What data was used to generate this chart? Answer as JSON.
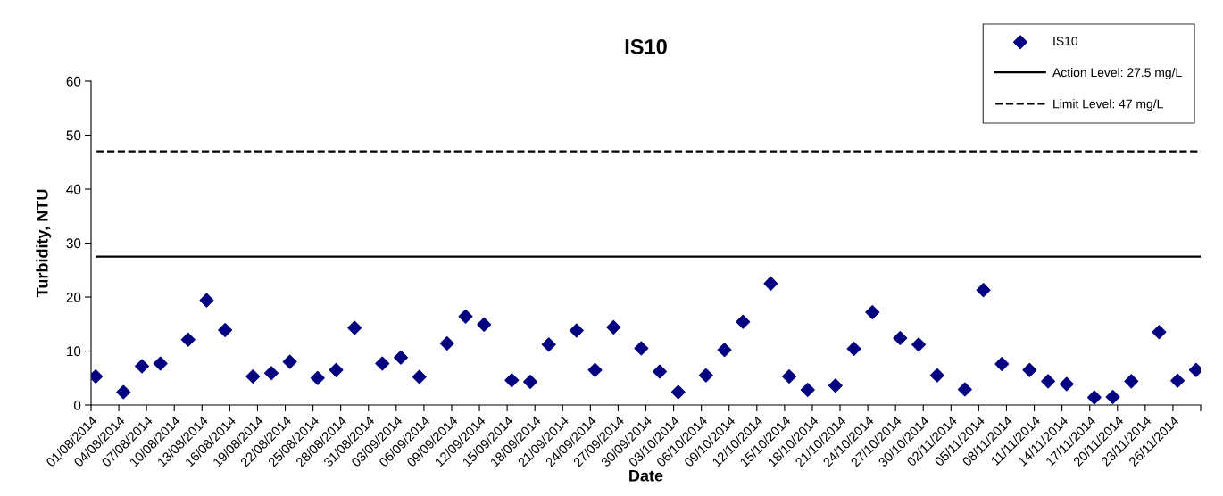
{
  "chart_data": {
    "type": "scatter",
    "title": "IS10",
    "xlabel": "Date",
    "ylabel": "Turbidity, NTU",
    "x": [
      "2014-08-01T12:00",
      "2014-08-04T12:00",
      "2014-08-06T12:00",
      "2014-08-08T12:00",
      "2014-08-11T12:00",
      "2014-08-13T12:00",
      "2014-08-15T12:00",
      "2014-08-18T12:00",
      "2014-08-20T12:00",
      "2014-08-22T12:00",
      "2014-08-25T12:00",
      "2014-08-27T12:00",
      "2014-08-29T12:00",
      "2014-09-01T12:00",
      "2014-09-03T12:00",
      "2014-09-05T12:00",
      "2014-09-08T12:00",
      "2014-09-10T12:00",
      "2014-09-12T12:00",
      "2014-09-15T12:00",
      "2014-09-17T12:00",
      "2014-09-19T12:00",
      "2014-09-22T12:00",
      "2014-09-24T12:00",
      "2014-09-26T12:00",
      "2014-09-29T12:00",
      "2014-10-01T12:00",
      "2014-10-03T12:00",
      "2014-10-06T12:00",
      "2014-10-08T12:00",
      "2014-10-10T12:00",
      "2014-10-13T12:00",
      "2014-10-15T12:00",
      "2014-10-17T12:00",
      "2014-10-20T12:00",
      "2014-10-22T12:00",
      "2014-10-24T12:00",
      "2014-10-27T12:00",
      "2014-10-29T12:00",
      "2014-10-31T12:00",
      "2014-11-03T12:00",
      "2014-11-05T12:00",
      "2014-11-07T12:00",
      "2014-11-10T12:00",
      "2014-11-12T12:00",
      "2014-11-14T12:00",
      "2014-11-17T12:00",
      "2014-11-19T12:00",
      "2014-11-21T12:00",
      "2014-11-24T12:00",
      "2014-11-26T12:00",
      "2014-11-28T12:00"
    ],
    "series": [
      {
        "name": "IS10",
        "color": "#000080",
        "values": [
          5.3,
          2.4,
          7.2,
          7.7,
          12.1,
          19.4,
          13.9,
          5.3,
          5.9,
          8.0,
          5.0,
          6.5,
          14.3,
          7.7,
          8.8,
          5.2,
          11.4,
          16.4,
          14.9,
          4.6,
          4.3,
          11.2,
          13.8,
          6.5,
          14.4,
          10.5,
          6.2,
          2.4,
          5.5,
          10.2,
          15.4,
          22.5,
          5.3,
          2.8,
          3.6,
          10.4,
          17.2,
          12.4,
          11.2,
          5.5,
          2.9,
          21.3,
          7.6,
          6.5,
          4.4,
          3.9,
          1.4,
          1.5,
          4.4,
          13.5,
          4.5,
          6.5
        ]
      }
    ],
    "marker": "diamond",
    "ref_lines": [
      {
        "axis": "y",
        "value": 27.5,
        "label": "Action Level: 27.5 mg/L",
        "color": "#000000",
        "line_style": "solid"
      },
      {
        "axis": "y",
        "value": 47,
        "label": "Limit Level: 47 mg/L",
        "color": "#000000",
        "line_style": "dashed"
      }
    ],
    "xlim": [
      "2014-08-01",
      "2014-11-29"
    ],
    "xticks": [
      {
        "value": "2014-08-01",
        "label": "01/08/2014"
      },
      {
        "value": "2014-08-04",
        "label": "04/08/2014"
      },
      {
        "value": "2014-08-07",
        "label": "07/08/2014"
      },
      {
        "value": "2014-08-10",
        "label": "10/08/2014"
      },
      {
        "value": "2014-08-13",
        "label": "13/08/2014"
      },
      {
        "value": "2014-08-16",
        "label": "16/08/2014"
      },
      {
        "value": "2014-08-19",
        "label": "19/08/2014"
      },
      {
        "value": "2014-08-22",
        "label": "22/08/2014"
      },
      {
        "value": "2014-08-25",
        "label": "25/08/2014"
      },
      {
        "value": "2014-08-28",
        "label": "28/08/2014"
      },
      {
        "value": "2014-08-31",
        "label": "31/08/2014"
      },
      {
        "value": "2014-09-03",
        "label": "03/09/2014"
      },
      {
        "value": "2014-09-06",
        "label": "06/09/2014"
      },
      {
        "value": "2014-09-09",
        "label": "09/09/2014"
      },
      {
        "value": "2014-09-12",
        "label": "12/09/2014"
      },
      {
        "value": "2014-09-15",
        "label": "15/09/2014"
      },
      {
        "value": "2014-09-18",
        "label": "18/09/2014"
      },
      {
        "value": "2014-09-21",
        "label": "21/09/2014"
      },
      {
        "value": "2014-09-24",
        "label": "24/09/2014"
      },
      {
        "value": "2014-09-27",
        "label": "27/09/2014"
      },
      {
        "value": "2014-09-30",
        "label": "30/09/2014"
      },
      {
        "value": "2014-10-03",
        "label": "03/10/2014"
      },
      {
        "value": "2014-10-06",
        "label": "06/10/2014"
      },
      {
        "value": "2014-10-09",
        "label": "09/10/2014"
      },
      {
        "value": "2014-10-12",
        "label": "12/10/2014"
      },
      {
        "value": "2014-10-15",
        "label": "15/10/2014"
      },
      {
        "value": "2014-10-18",
        "label": "18/10/2014"
      },
      {
        "value": "2014-10-21",
        "label": "21/10/2014"
      },
      {
        "value": "2014-10-24",
        "label": "24/10/2014"
      },
      {
        "value": "2014-10-27",
        "label": "27/10/2014"
      },
      {
        "value": "2014-10-30",
        "label": "30/10/2014"
      },
      {
        "value": "2014-11-02",
        "label": "02/11/2014"
      },
      {
        "value": "2014-11-05",
        "label": "05/11/2014"
      },
      {
        "value": "2014-11-08",
        "label": "08/11/2014"
      },
      {
        "value": "2014-11-11",
        "label": "11/11/2014"
      },
      {
        "value": "2014-11-14",
        "label": "14/11/2014"
      },
      {
        "value": "2014-11-17",
        "label": "17/11/2014"
      },
      {
        "value": "2014-11-20",
        "label": "20/11/2014"
      },
      {
        "value": "2014-11-23",
        "label": "23/11/2014"
      },
      {
        "value": "2014-11-26",
        "label": "26/11/2014"
      },
      {
        "value": "2014-11-29",
        "label": null
      }
    ],
    "ylim": [
      0,
      60
    ],
    "yticks": [
      0,
      10,
      20,
      30,
      40,
      50,
      60
    ],
    "grid": false,
    "legend": "top right"
  }
}
